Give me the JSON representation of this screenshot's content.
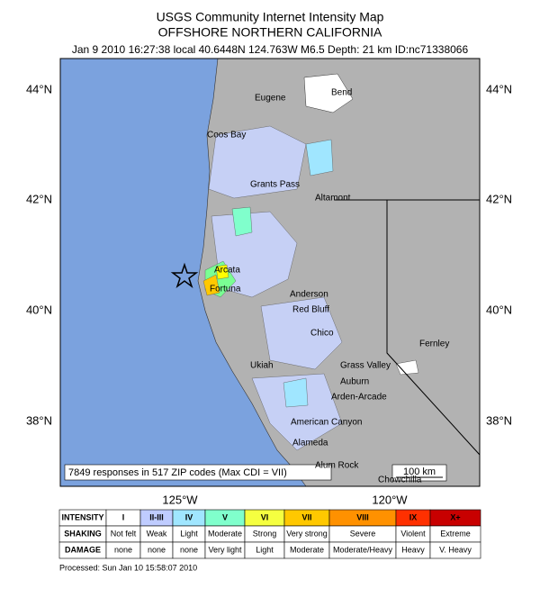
{
  "header": {
    "title": "USGS Community Internet Intensity Map",
    "subtitle": "OFFSHORE NORTHERN CALIFORNIA",
    "details": "Jan 9 2010 16:27:38 local 40.6448N 124.763W M6.5 Depth: 21 km ID:nc71338066"
  },
  "map": {
    "lat_labels": [
      "44°N",
      "42°N",
      "40°N",
      "38°N"
    ],
    "lon_labels": [
      "125°W",
      "120°W"
    ],
    "places": [
      "Bend",
      "Eugene",
      "Coos Bay",
      "Grants Pass",
      "Altamont",
      "Arcata",
      "Fortuna",
      "Anderson",
      "Red Bluff",
      "Chico",
      "Fernley",
      "Ukiah",
      "Grass Valley",
      "Auburn",
      "Arden-Arcade",
      "American Canyon",
      "Alameda",
      "Alum Rock",
      "Chowchilla"
    ],
    "responses": "7849 responses in 517 ZIP codes (Max CDI = VII)",
    "scale": "100 km"
  },
  "legend": {
    "rows": [
      [
        "INTENSITY",
        "I",
        "II-III",
        "IV",
        "V",
        "VI",
        "VII",
        "VIII",
        "IX",
        "X+"
      ],
      [
        "SHAKING",
        "Not felt",
        "Weak",
        "Light",
        "Moderate",
        "Strong",
        "Very strong",
        "Severe",
        "Violent",
        "Extreme"
      ],
      [
        "DAMAGE",
        "none",
        "none",
        "none",
        "Very light",
        "Light",
        "Moderate",
        "Moderate/Heavy",
        "Heavy",
        "V. Heavy"
      ]
    ]
  },
  "footer": "Processed: Sun Jan 10 15:58:07 2010"
}
